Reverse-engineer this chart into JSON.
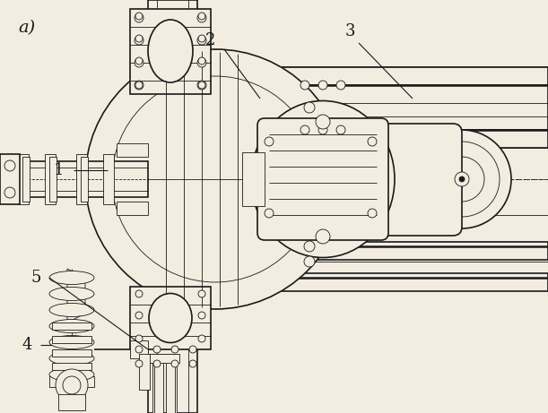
{
  "background_color": "#f2ede0",
  "line_color": "#1a1a1a",
  "bg_fill": "#f2ede0",
  "lw_main": 1.2,
  "lw_thin": 0.6,
  "lw_thick": 1.8,
  "figsize": [
    6.11,
    4.61
  ],
  "dpi": 100
}
